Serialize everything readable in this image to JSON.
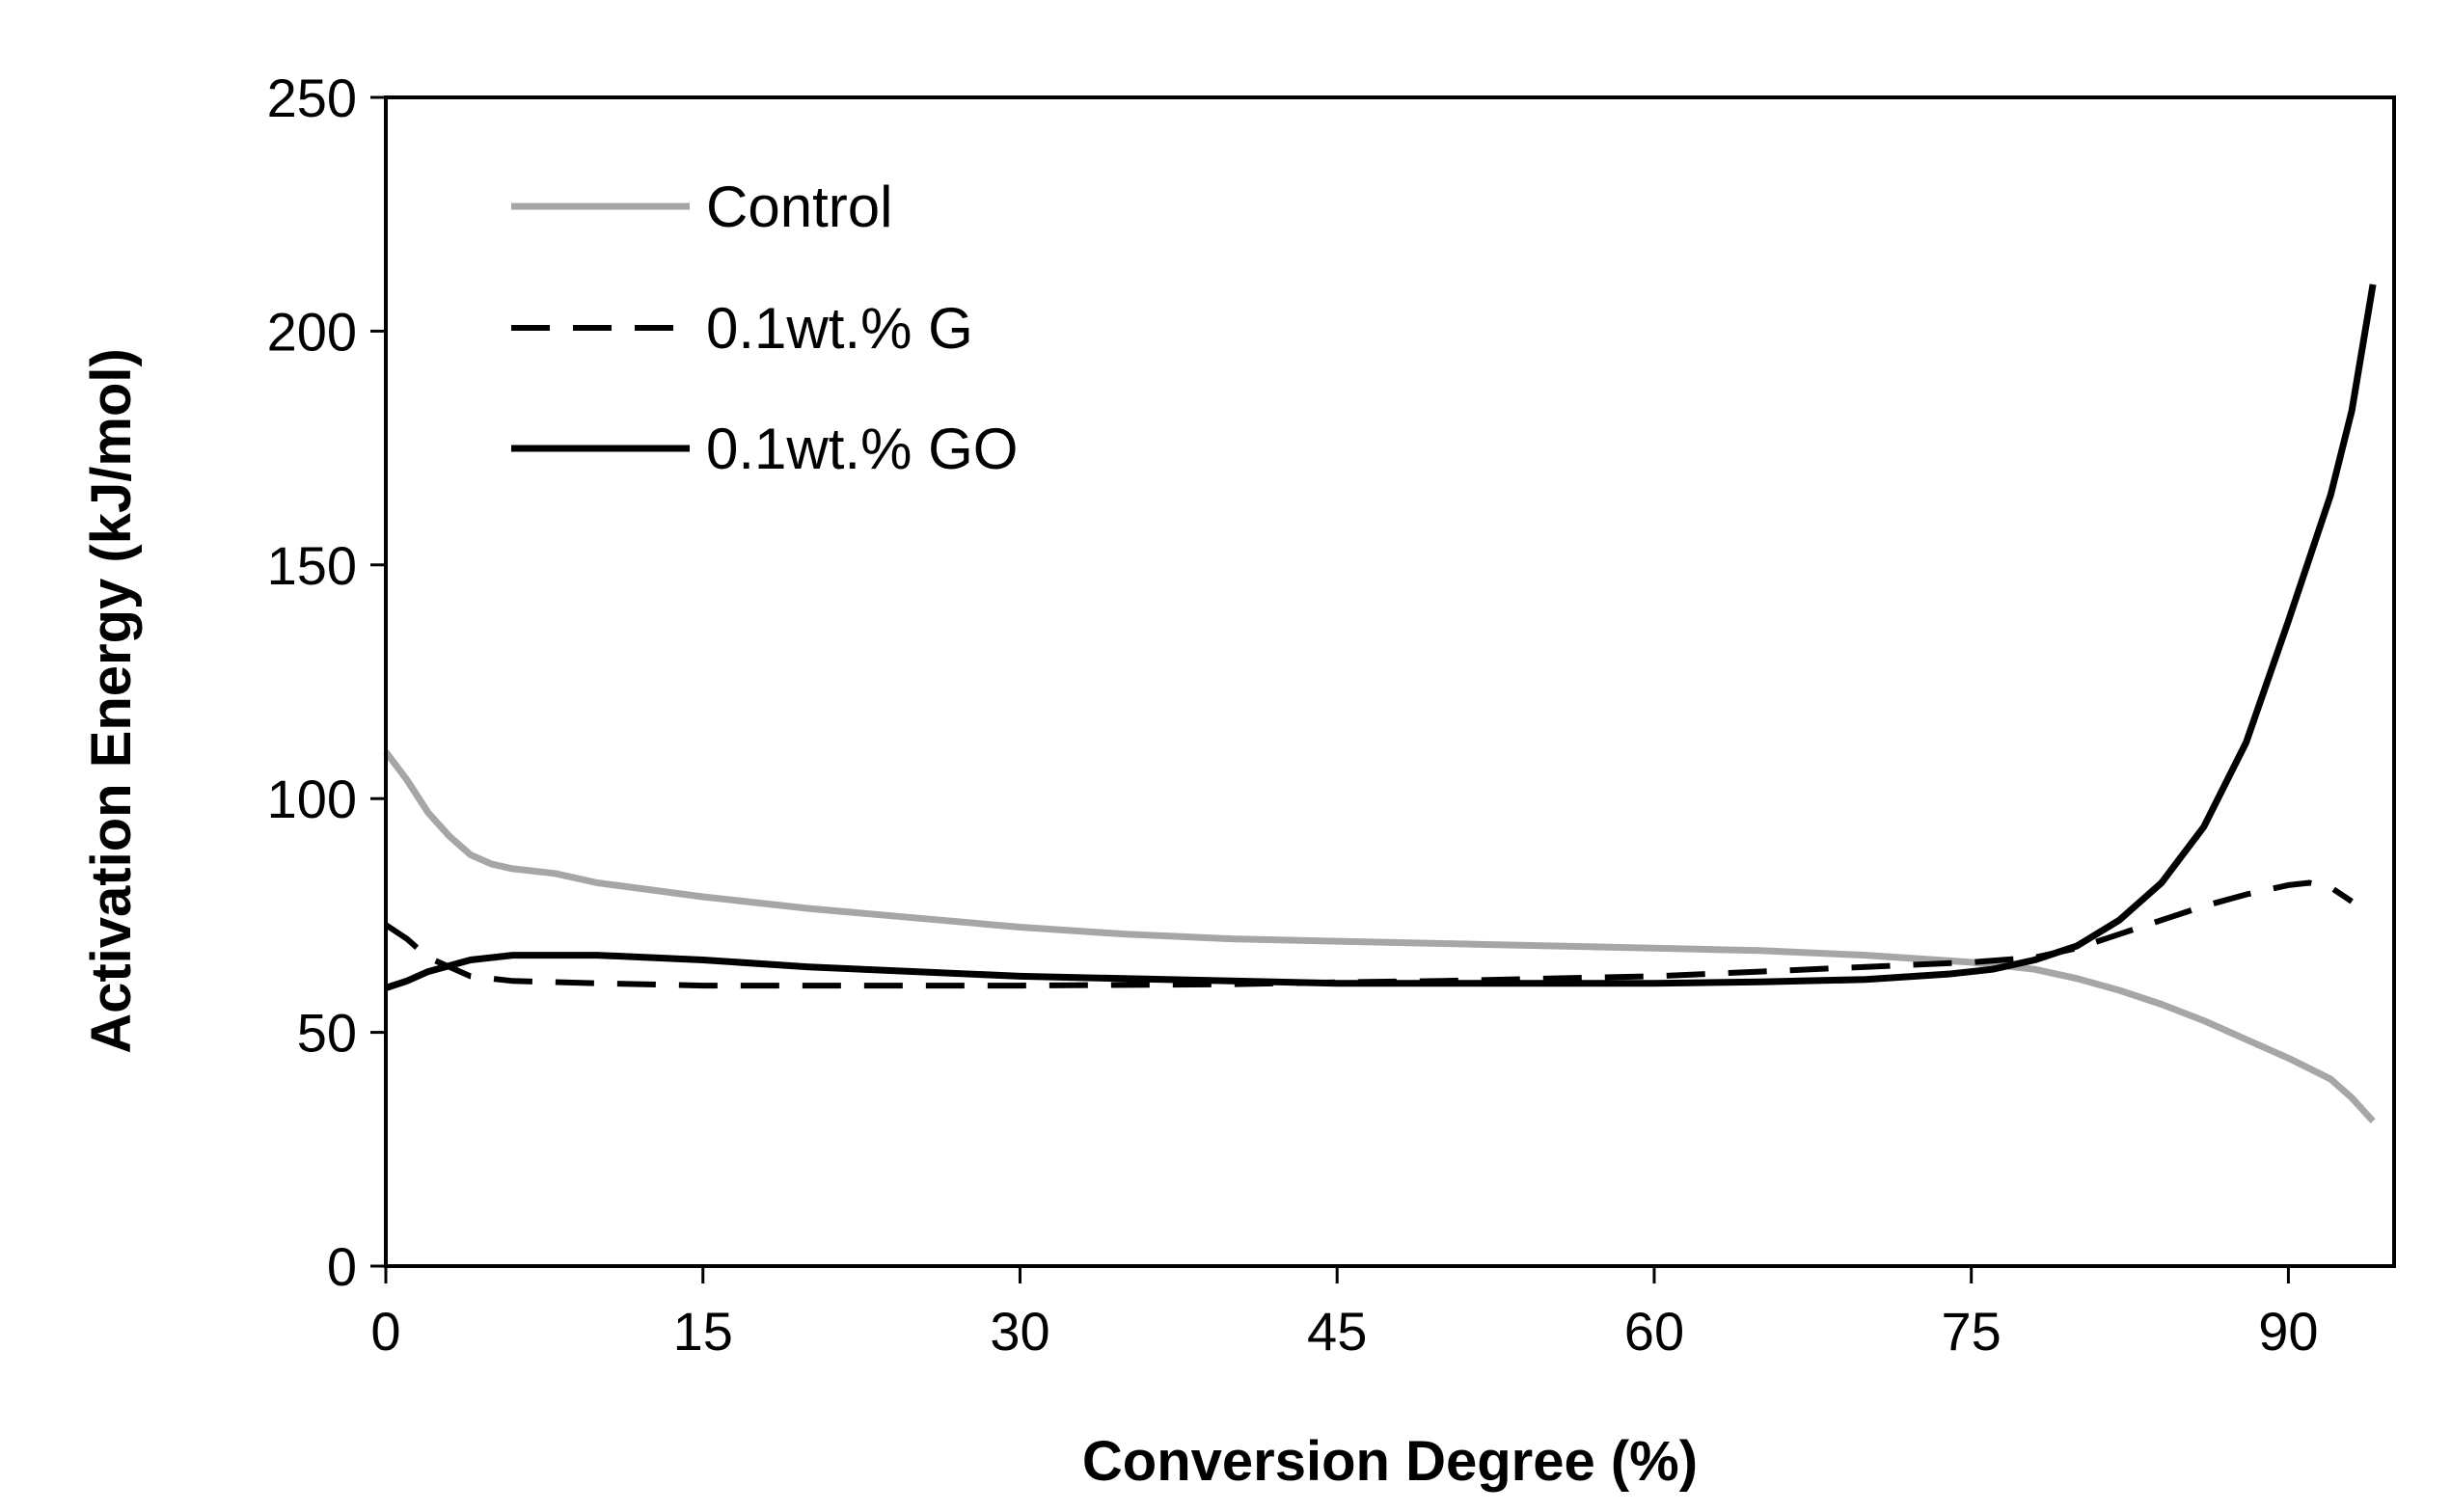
{
  "chart_data": {
    "type": "line",
    "title": "",
    "xlabel": "Conversion Degree (%)",
    "ylabel": "Activation Energy (kJ/mol)",
    "xlim": [
      0,
      95
    ],
    "ylim": [
      0,
      250
    ],
    "xticks": [
      0,
      15,
      30,
      45,
      60,
      75,
      90
    ],
    "yticks": [
      0,
      50,
      100,
      150,
      200,
      250
    ],
    "grid": false,
    "legend_position": "top-left",
    "series": [
      {
        "name": "Control",
        "color": "#a6a6a6",
        "style": "solid",
        "x": [
          0,
          1,
          2,
          3,
          4,
          5,
          6,
          8,
          10,
          15,
          20,
          25,
          30,
          35,
          40,
          45,
          50,
          55,
          60,
          65,
          70,
          75,
          78,
          80,
          82,
          84,
          86,
          88,
          90,
          92,
          93,
          94
        ],
        "y": [
          110,
          104,
          97,
          92,
          88,
          86,
          85,
          84,
          82,
          79,
          76.5,
          74.5,
          72.5,
          71,
          70,
          69.5,
          69,
          68.5,
          68,
          67.5,
          66.5,
          65,
          63.5,
          61.5,
          59,
          56,
          52.5,
          48.5,
          44.5,
          40,
          36,
          31
        ]
      },
      {
        "name": "0.1wt.% G",
        "color": "#000000",
        "style": "dashed",
        "x": [
          0,
          1,
          2,
          4,
          6,
          10,
          15,
          20,
          30,
          40,
          45,
          50,
          55,
          60,
          65,
          70,
          75,
          78,
          80,
          82,
          84,
          86,
          88,
          90,
          91,
          92,
          93
        ],
        "y": [
          73,
          70,
          66,
          62,
          61,
          60.5,
          60,
          60,
          60,
          60.3,
          60.7,
          61,
          61.5,
          62,
          63,
          64,
          65,
          66,
          68,
          71,
          74,
          77,
          79.5,
          81.5,
          82,
          81,
          78
        ]
      },
      {
        "name": "0.1wt.% GO",
        "color": "#000000",
        "style": "solid",
        "x": [
          0,
          1,
          2,
          4,
          6,
          10,
          15,
          20,
          30,
          40,
          45,
          50,
          55,
          60,
          65,
          70,
          74,
          76,
          78,
          80,
          82,
          84,
          86,
          88,
          90,
          92,
          93,
          94
        ],
        "y": [
          59.5,
          61,
          63,
          65.5,
          66.5,
          66.5,
          65.5,
          64,
          62,
          61,
          60.5,
          60.5,
          60.5,
          60.5,
          60.8,
          61.3,
          62.5,
          63.5,
          65.5,
          68.5,
          74,
          82,
          94,
          112,
          138,
          165,
          183,
          210
        ]
      }
    ]
  }
}
